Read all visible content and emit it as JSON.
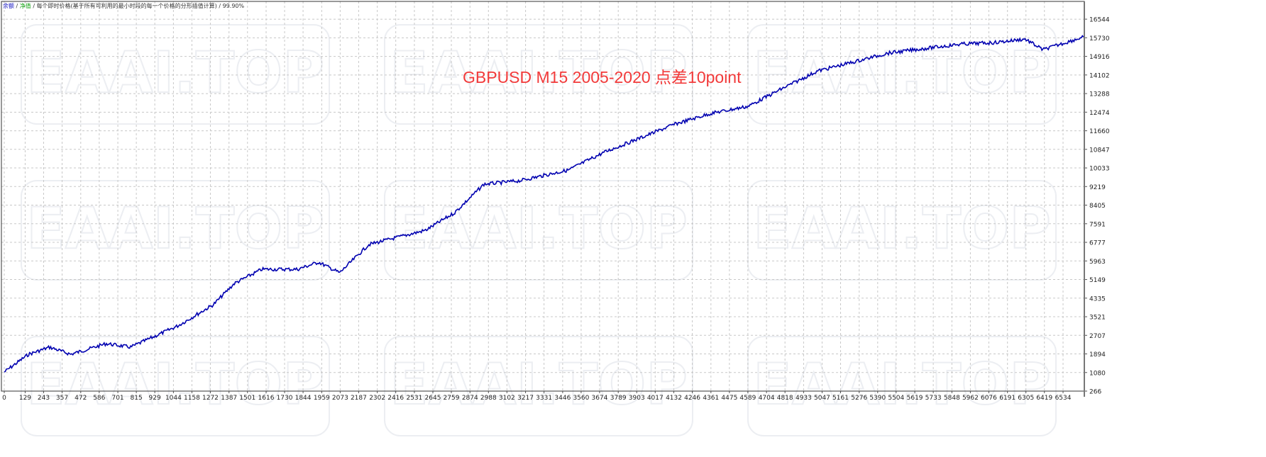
{
  "legend": {
    "balance": "余额",
    "separator": " / ",
    "equity": "净值",
    "model": "每个即时价格(基于所有可利用的最小时段的每一个价格的分形插值计算)",
    "quality": "99.90%"
  },
  "watermark": "EAAI.TOP",
  "chart_data": {
    "type": "line",
    "title": "GBPUSD M15 2005-2020 点差10point",
    "xlabel": "",
    "ylabel": "",
    "x_ticks": [
      0,
      129,
      243,
      357,
      472,
      586,
      701,
      815,
      929,
      1044,
      1158,
      1272,
      1387,
      1501,
      1616,
      1730,
      1844,
      1959,
      2073,
      2187,
      2302,
      2416,
      2531,
      2645,
      2759,
      2874,
      2988,
      3102,
      3217,
      3331,
      3446,
      3560,
      3674,
      3789,
      3903,
      4017,
      4132,
      4246,
      4361,
      4475,
      4589,
      4704,
      4818,
      4933,
      5047,
      5161,
      5276,
      5390,
      5504,
      5619,
      5733,
      5848,
      5962,
      6076,
      6191,
      6305,
      6419,
      6534
    ],
    "y_ticks": [
      16544,
      15730,
      14916,
      14102,
      13288,
      12474,
      11660,
      10847,
      10033,
      9219,
      8405,
      7591,
      6777,
      5963,
      5149,
      4335,
      3521,
      2707,
      1894,
      1080,
      266
    ],
    "xlim": [
      0,
      6680
    ],
    "ylim": [
      266,
      17358
    ],
    "grid": true,
    "series": [
      {
        "name": "余额",
        "color": "#0000b0",
        "x": [
          0,
          150,
          280,
          410,
          630,
          780,
          1070,
          1290,
          1420,
          1590,
          1810,
          1940,
          2070,
          2250,
          2600,
          2780,
          2960,
          3180,
          3480,
          3700,
          3920,
          4140,
          4360,
          4590,
          4800,
          5020,
          5230,
          5450,
          5690,
          5910,
          6110,
          6300,
          6410,
          6660
        ],
        "y": [
          1103,
          1878,
          2188,
          1878,
          2343,
          2188,
          3118,
          4048,
          4978,
          5598,
          5598,
          5908,
          5443,
          6683,
          7303,
          8078,
          9318,
          9473,
          9938,
          10713,
          11333,
          11953,
          12418,
          12728,
          13503,
          14278,
          14650,
          15053,
          15270,
          15456,
          15518,
          15673,
          15208,
          15766
        ]
      }
    ]
  }
}
